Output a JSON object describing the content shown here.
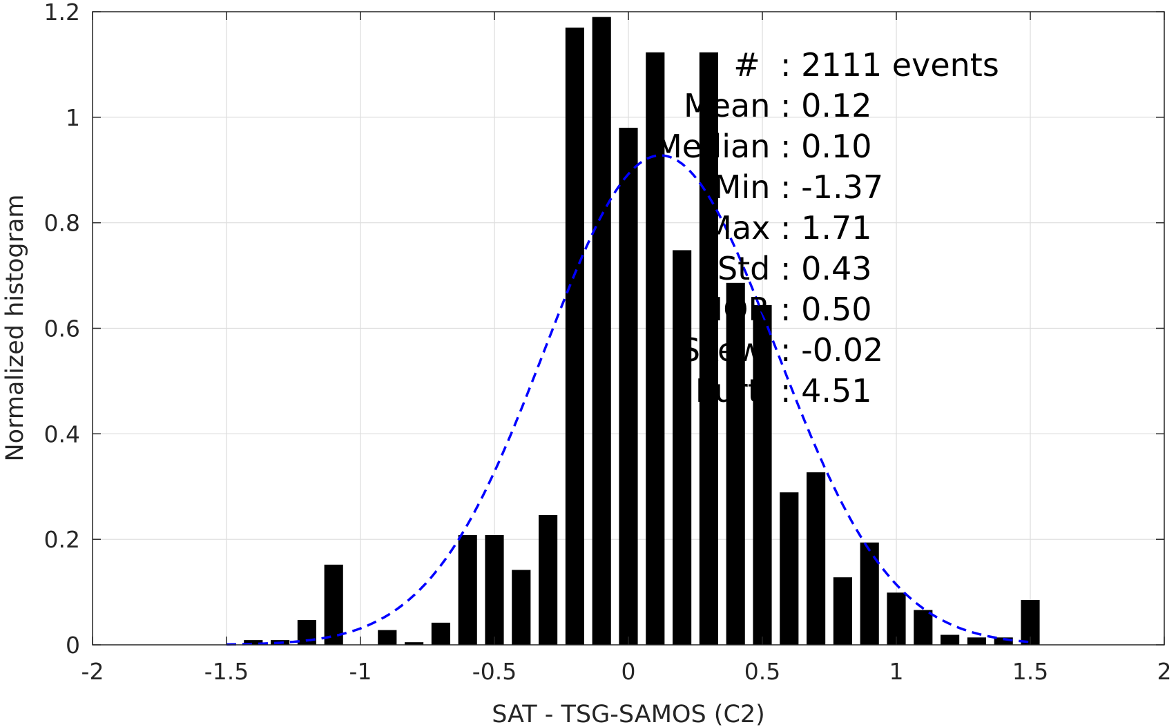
{
  "chart_data": {
    "type": "bar",
    "xlabel": "SAT - TSG-SAMOS (C2)",
    "ylabel": "Normalized histogram",
    "xlim": [
      -2,
      2
    ],
    "ylim": [
      0,
      1.2
    ],
    "x_ticks": [
      "-2",
      "-1.5",
      "-1",
      "-0.5",
      "0",
      "0.5",
      "1",
      "1.5",
      "2"
    ],
    "y_ticks": [
      "0",
      "0.2",
      "0.4",
      "0.6",
      "0.8",
      "1",
      "1.2"
    ],
    "grid": true,
    "bar_color": "#000000",
    "fit_color": "#0000ff",
    "bars": [
      {
        "x": -1.4,
        "value": 0.009
      },
      {
        "x": -1.3,
        "value": 0.009
      },
      {
        "x": -1.2,
        "value": 0.047
      },
      {
        "x": -1.1,
        "value": 0.152
      },
      {
        "x": -0.9,
        "value": 0.028
      },
      {
        "x": -0.8,
        "value": 0.005
      },
      {
        "x": -0.7,
        "value": 0.042
      },
      {
        "x": -0.6,
        "value": 0.208
      },
      {
        "x": -0.5,
        "value": 0.208
      },
      {
        "x": -0.4,
        "value": 0.142
      },
      {
        "x": -0.3,
        "value": 0.246
      },
      {
        "x": -0.2,
        "value": 1.17
      },
      {
        "x": -0.1,
        "value": 1.19
      },
      {
        "x": 0.0,
        "value": 0.98
      },
      {
        "x": 0.1,
        "value": 1.123
      },
      {
        "x": 0.2,
        "value": 0.748
      },
      {
        "x": 0.3,
        "value": 1.123
      },
      {
        "x": 0.4,
        "value": 0.686
      },
      {
        "x": 0.5,
        "value": 0.644
      },
      {
        "x": 0.6,
        "value": 0.289
      },
      {
        "x": 0.7,
        "value": 0.327
      },
      {
        "x": 0.8,
        "value": 0.128
      },
      {
        "x": 0.9,
        "value": 0.194
      },
      {
        "x": 1.0,
        "value": 0.099
      },
      {
        "x": 1.1,
        "value": 0.066
      },
      {
        "x": 1.2,
        "value": 0.019
      },
      {
        "x": 1.3,
        "value": 0.014
      },
      {
        "x": 1.4,
        "value": 0.014
      },
      {
        "x": 1.5,
        "value": 0.085
      }
    ],
    "bar_width": 0.07,
    "fit": {
      "style": "dashed",
      "x_range": [
        -1.5,
        1.5
      ],
      "mean": 0.12,
      "std": 0.43
    },
    "stats": [
      {
        "label": "#  ",
        "value": ": 2111 events"
      },
      {
        "label": "Mean ",
        "value": ": 0.12"
      },
      {
        "label": "Median ",
        "value": ": 0.10"
      },
      {
        "label": "Min ",
        "value": ": -1.37"
      },
      {
        "label": "Max ",
        "value": ": 1.71"
      },
      {
        "label": "Std ",
        "value": ": 0.43"
      },
      {
        "label": "IQR ",
        "value": ": 0.50"
      },
      {
        "label": "Skew. ",
        "value": ": -0.02"
      },
      {
        "label": "Kurt. ",
        "value": ": 4.51"
      }
    ]
  }
}
